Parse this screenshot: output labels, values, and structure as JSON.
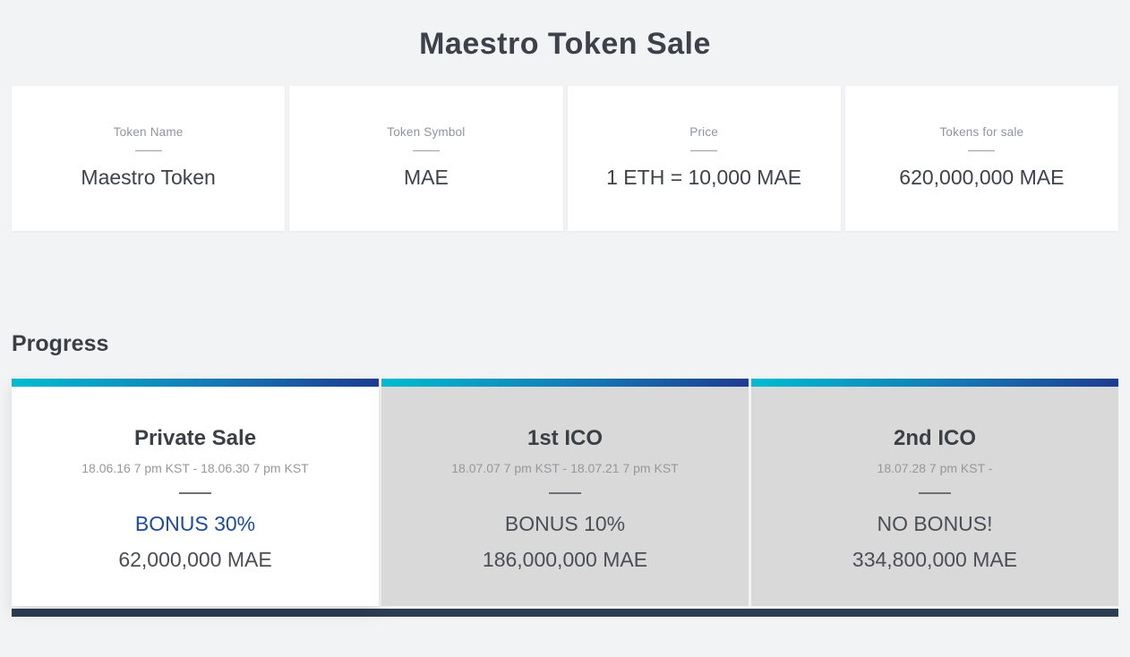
{
  "page": {
    "title": "Maestro Token Sale"
  },
  "info_cards": [
    {
      "label": "Token Name",
      "value": "Maestro Token"
    },
    {
      "label": "Token Symbol",
      "value": "MAE"
    },
    {
      "label": "Price",
      "value": "1 ETH = 10,000 MAE"
    },
    {
      "label": "Tokens for sale",
      "value": "620,000,000 MAE"
    }
  ],
  "progress": {
    "heading": "Progress",
    "phases": [
      {
        "name": "Private Sale",
        "dates": "18.06.16 7 pm KST - 18.06.30 7 pm KST",
        "bonus": "BONUS 30%",
        "amount": "62,000,000 MAE"
      },
      {
        "name": "1st ICO",
        "dates": "18.07.07 7 pm KST - 18.07.21 7 pm KST",
        "bonus": "BONUS 10%",
        "amount": "186,000,000 MAE"
      },
      {
        "name": "2nd ICO",
        "dates": "18.07.28 7 pm KST -",
        "bonus": "NO BONUS!",
        "amount": "334,800,000 MAE"
      }
    ]
  },
  "colors": {
    "accent_cyan": "#00bcd1",
    "accent_navy": "#1e3c92",
    "bonus_highlight": "#1d4b9e",
    "page_background": "#f2f3f5"
  }
}
